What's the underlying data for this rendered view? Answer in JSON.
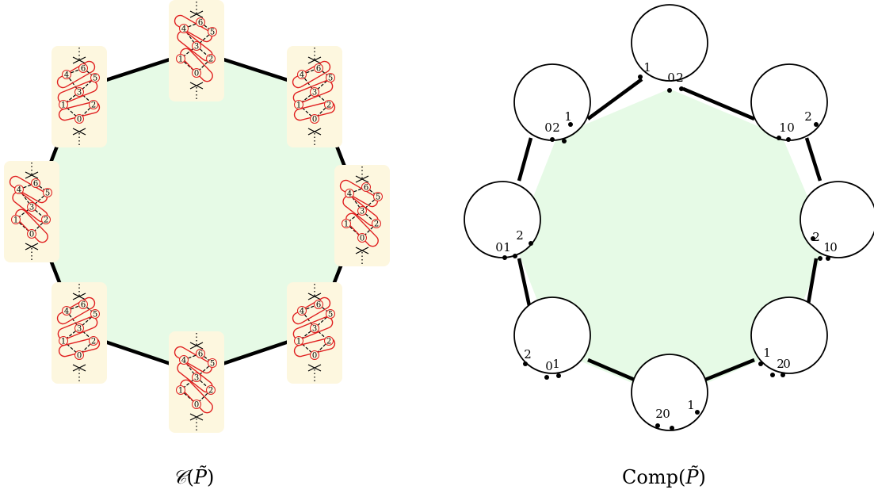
{
  "captions": {
    "left": {
      "symbol": "𝒞",
      "open": "(",
      "var": "P̃",
      "close": ")"
    },
    "right": {
      "prefix": "Comp",
      "open": "(",
      "var": "P̃",
      "close": ")"
    }
  },
  "colors": {
    "fill": "#e6fae6",
    "edge": "#000000",
    "card": "#fdf7df",
    "red": "#e02020"
  },
  "left_diagram": {
    "vertex_labels": [
      "4",
      "6",
      "5",
      "3",
      "1",
      "2",
      "0"
    ]
  },
  "right_diagram": {
    "circles": [
      {
        "id": "top",
        "labels": [
          "1",
          "0",
          "2"
        ]
      },
      {
        "id": "top-right",
        "labels": [
          "1",
          "0",
          "2"
        ]
      },
      {
        "id": "right",
        "labels": [
          "2",
          "1",
          "0"
        ]
      },
      {
        "id": "bottom-right",
        "labels": [
          "1",
          "2",
          "0"
        ]
      },
      {
        "id": "bottom",
        "labels": [
          "2",
          "0",
          "1"
        ]
      },
      {
        "id": "bottom-left",
        "labels": [
          "2",
          "0",
          "1"
        ]
      },
      {
        "id": "left",
        "labels": [
          "0",
          "1",
          "2"
        ]
      },
      {
        "id": "top-left",
        "labels": [
          "0",
          "2",
          "1"
        ]
      }
    ]
  }
}
